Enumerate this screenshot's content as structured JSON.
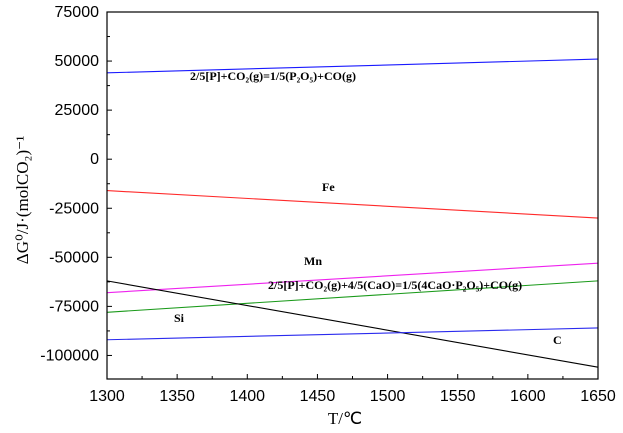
{
  "chart_data": {
    "type": "line",
    "xlabel": "T/℃",
    "ylabel": "ΔG⁰/J·(molCO₂)⁻¹",
    "xlim": [
      1300,
      1650
    ],
    "ylim": [
      -112000,
      75000
    ],
    "xticks": [
      1300,
      1350,
      1400,
      1450,
      1500,
      1550,
      1600,
      1650
    ],
    "yticks": [
      75000,
      50000,
      25000,
      0,
      -25000,
      -50000,
      -75000,
      -100000
    ],
    "xtick_labels": [
      "1300",
      "1350",
      "1400",
      "1450",
      "1500",
      "1550",
      "1600",
      "1650"
    ],
    "ytick_labels": [
      "75000",
      "50000",
      "25000",
      "0",
      "-25000",
      "-50000",
      "-75000",
      "-100000"
    ],
    "series": [
      {
        "name": "P2O5",
        "label": "2/5[P]+CO₂(g)=1/5(P₂O₅)+CO(g)",
        "color": "#1a1aff",
        "x": [
          1300,
          1650
        ],
        "y": [
          44000,
          51000
        ]
      },
      {
        "name": "Fe",
        "label": "Fe",
        "color": "#ff2a2a",
        "x": [
          1300,
          1650
        ],
        "y": [
          -16000,
          -30000
        ]
      },
      {
        "name": "Mn",
        "label": "Mn",
        "color": "#ee22ee",
        "x": [
          1300,
          1650
        ],
        "y": [
          -68000,
          -53000
        ]
      },
      {
        "name": "4CaO·P2O5",
        "label": "2/5[P]+CO₂(g)+4/5(CaO)=1/5(4CaO·P₂O₅)+CO(g)",
        "color": "#1a9a1a",
        "x": [
          1300,
          1650
        ],
        "y": [
          -78000,
          -62000
        ]
      },
      {
        "name": "C",
        "label": "C",
        "color": "#000000",
        "x": [
          1300,
          1650
        ],
        "y": [
          -62000,
          -106000
        ]
      },
      {
        "name": "Si",
        "label": "Si",
        "color": "#2a2aee",
        "x": [
          1300,
          1650
        ],
        "y": [
          -92000,
          -86000
        ]
      }
    ]
  }
}
